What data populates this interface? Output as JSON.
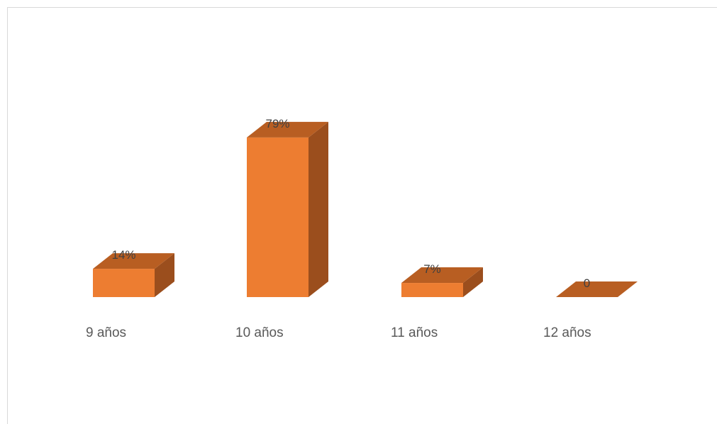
{
  "chart_data": {
    "type": "bar",
    "categories": [
      "9 años",
      "10 años",
      "11 años",
      "12 años"
    ],
    "values": [
      14,
      79,
      7,
      0
    ],
    "data_labels": [
      "14%",
      "79%",
      "7%",
      "0"
    ],
    "title": "",
    "xlabel": "",
    "ylabel": "",
    "ylim": [
      0,
      100
    ],
    "grid": false,
    "legend": "none",
    "three_d": true,
    "colors": {
      "front": "#ED7D31",
      "top": "#B85E22",
      "side": "#9B4E1D"
    }
  }
}
